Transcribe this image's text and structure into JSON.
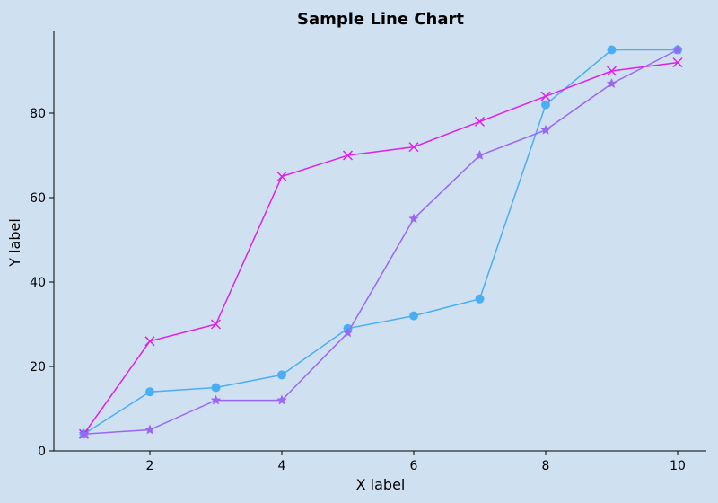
{
  "chart_data": {
    "type": "line",
    "title": "Sample Line Chart",
    "xlabel": "X label",
    "ylabel": "Y label",
    "xlim": [
      0.55,
      10.45
    ],
    "ylim": [
      0,
      99
    ],
    "x_ticks": [
      2,
      4,
      6,
      8,
      10
    ],
    "y_ticks": [
      0,
      20,
      40,
      60,
      80
    ],
    "grid": false,
    "background": "#cfe0f0",
    "x": [
      1,
      2,
      3,
      4,
      5,
      6,
      7,
      8,
      9,
      10
    ],
    "series": [
      {
        "marker": "circle",
        "color": "#4aaef5",
        "values": [
          4,
          14,
          15,
          18,
          29,
          32,
          36,
          82,
          95,
          95
        ]
      },
      {
        "marker": "x",
        "color": "#e020e8",
        "values": [
          4,
          26,
          30,
          65,
          70,
          72,
          78,
          84,
          90,
          92
        ]
      },
      {
        "marker": "star",
        "color": "#9b66f5",
        "values": [
          4,
          5,
          12,
          12,
          28,
          55,
          70,
          76,
          87,
          95
        ]
      }
    ]
  }
}
